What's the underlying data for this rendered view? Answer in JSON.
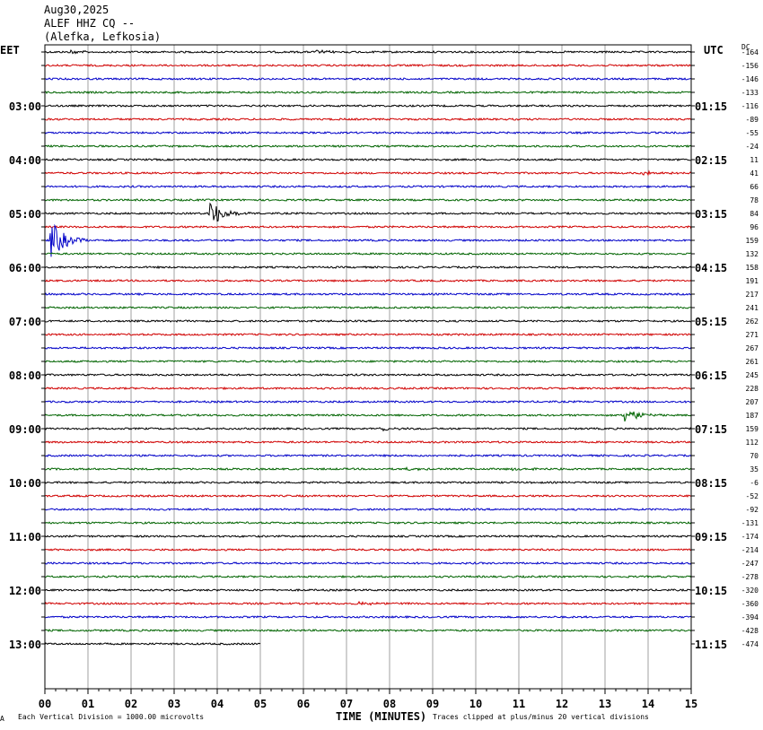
{
  "header": {
    "date": "Aug30,2025",
    "station": "ALEF HHZ CQ --",
    "location": "(Alefka, Lefkosia)"
  },
  "left_zone_label": "EET",
  "right_zone_label": "UTC",
  "dc_label": "DC",
  "footer": {
    "scale_note": "Each Vertical Division = 1000.00 microvolts",
    "clip_note": "Traces clipped at plus/minus 20 vertical divisions",
    "corner_mark": "A"
  },
  "colors": {
    "black": "#000000",
    "red": "#d00000",
    "blue": "#0000c8",
    "green": "#006400",
    "grid": "#a0a0a0"
  },
  "chart_data": {
    "type": "line",
    "title": "ALEF HHZ CQ --",
    "xlabel": "TIME (MINUTES)",
    "xlim": [
      0,
      15
    ],
    "x_ticks": [
      "00",
      "01",
      "02",
      "03",
      "04",
      "05",
      "06",
      "07",
      "08",
      "09",
      "10",
      "11",
      "12",
      "13",
      "14",
      "15"
    ],
    "left_hour_labels": [
      "03:00",
      "04:00",
      "05:00",
      "06:00",
      "07:00",
      "08:00",
      "09:00",
      "10:00",
      "11:00",
      "12:00",
      "13:00"
    ],
    "right_hour_labels": [
      "01:15",
      "02:15",
      "03:15",
      "04:15",
      "05:15",
      "06:15",
      "07:15",
      "08:15",
      "09:15",
      "10:15",
      "11:15"
    ],
    "trace_color_cycle": [
      "black",
      "red",
      "blue",
      "green"
    ],
    "trace_count": 45,
    "last_trace_end_minute": 5,
    "dc_offsets": [
      -164,
      -156,
      -146,
      -133,
      -116,
      -89,
      -55,
      -24,
      11,
      41,
      66,
      78,
      84,
      96,
      159,
      132,
      158,
      191,
      217,
      241,
      262,
      271,
      267,
      261,
      245,
      228,
      207,
      187,
      159,
      112,
      70,
      35,
      -6,
      -52,
      -92,
      -131,
      -174,
      -214,
      -247,
      -278,
      -320,
      -360,
      -394,
      -428,
      -474
    ],
    "events": [
      {
        "trace": 0,
        "minute": 0.6,
        "amplitude": 2
      },
      {
        "trace": 0,
        "minute": 6.3,
        "amplitude": 2
      },
      {
        "trace": 9,
        "minute": 13.9,
        "amplitude": 4
      },
      {
        "trace": 12,
        "minute": 3.85,
        "amplitude": 17
      },
      {
        "trace": 13,
        "minute": 15.0,
        "amplitude": 3
      },
      {
        "trace": 14,
        "minute": 0.15,
        "amplitude": 22
      },
      {
        "trace": 27,
        "minute": 13.45,
        "amplitude": 10
      },
      {
        "trace": 28,
        "minute": 7.8,
        "amplitude": 3
      },
      {
        "trace": 31,
        "minute": 8.4,
        "amplitude": 2
      },
      {
        "trace": 31,
        "minute": 10.8,
        "amplitude": 2
      },
      {
        "trace": 41,
        "minute": 7.3,
        "amplitude": 2
      }
    ]
  }
}
